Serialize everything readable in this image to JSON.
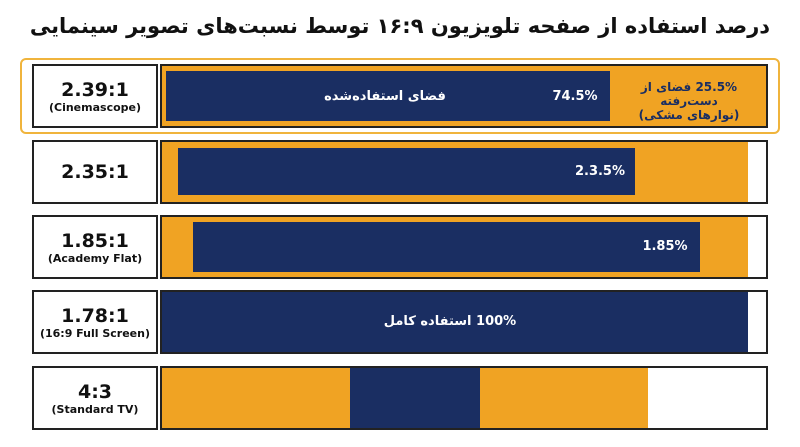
{
  "title": "درصد استفاده از صفحه تلویزیون ۱۶:۹ توسط نسبت‌های تصویر سینمایی",
  "rows": [
    {
      "ratio": "2.39:1",
      "name": "(Cinemascope)",
      "used_label": "فضای استفاده‌شده",
      "percent": "74.5%",
      "lost_label": "25.5% فضای از دست‌رفته",
      "lost_note": "(نوارهای مشکی)"
    },
    {
      "ratio": "2.35:1",
      "percent": "2.3.5%"
    },
    {
      "ratio": "1.85:1",
      "name": "(Academy Flat)",
      "percent": "1.85%"
    },
    {
      "ratio": "1.78:1",
      "name": "(16:9 Full Screen)",
      "percent": "100% استفاده کامل"
    },
    {
      "ratio": "4:3",
      "name": "(Standard TV)"
    }
  ]
}
